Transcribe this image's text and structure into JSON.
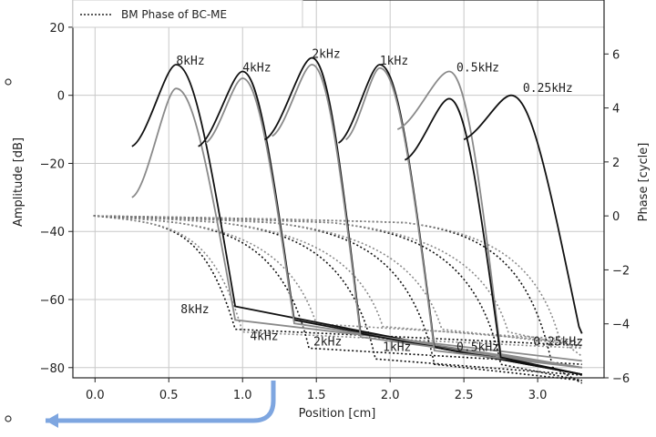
{
  "chart_data": {
    "type": "line",
    "xlabel": "Position [cm]",
    "ylabel_left": "Amplitude [dB]",
    "ylabel_right": "Phase [cycle]",
    "xlim": [
      -0.15,
      3.45
    ],
    "ylim_left": [
      -83,
      28
    ],
    "ylim_right": [
      -6,
      8.0
    ],
    "x_ticks": [
      "0.0",
      "0.5",
      "1.0",
      "1.5",
      "2.0",
      "2.5",
      "3.0"
    ],
    "y_left_ticks": [
      "20",
      "0",
      "−20",
      "−40",
      "−60",
      "−80"
    ],
    "y_right_ticks": [
      "6",
      "4",
      "2",
      "0",
      "−2",
      "−4",
      "−6"
    ],
    "grid": true,
    "legend": {
      "placement": "top-left",
      "entries": [
        "BM Phase of BC-ME"
      ]
    },
    "colors": {
      "black": "#111111",
      "gray": "#8a8a8a"
    },
    "frequencies": [
      "8kHz",
      "4kHz",
      "2kHz",
      "1kHz",
      "0.5kHz",
      "0.25kHz"
    ],
    "amplitude_series": [
      {
        "name": "8kHz",
        "color": "black",
        "peak_x": 0.55,
        "peak_y": 9,
        "start": [
          0.25,
          -15
        ],
        "drop_end": [
          0.95,
          -62
        ],
        "tail_end": [
          3.3,
          -82
        ]
      },
      {
        "name": "8kHz",
        "color": "gray",
        "peak_x": 0.55,
        "peak_y": 2,
        "start": [
          0.25,
          -30
        ],
        "drop_end": [
          0.95,
          -66
        ],
        "tail_end": [
          3.3,
          -78
        ]
      },
      {
        "name": "4kHz",
        "color": "black",
        "peak_x": 1.0,
        "peak_y": 7,
        "start": [
          0.7,
          -15
        ],
        "drop_end": [
          1.35,
          -66
        ],
        "tail_end": [
          3.3,
          -82
        ]
      },
      {
        "name": "4kHz",
        "color": "gray",
        "peak_x": 1.0,
        "peak_y": 5,
        "start": [
          0.75,
          -14
        ],
        "drop_end": [
          1.35,
          -67
        ],
        "tail_end": [
          3.3,
          -80
        ]
      },
      {
        "name": "2kHz",
        "color": "black",
        "peak_x": 1.47,
        "peak_y": 11,
        "start": [
          1.15,
          -13
        ],
        "drop_end": [
          1.8,
          -70
        ],
        "tail_end": [
          3.3,
          -82
        ]
      },
      {
        "name": "2kHz",
        "color": "gray",
        "peak_x": 1.47,
        "peak_y": 9,
        "start": [
          1.2,
          -12
        ],
        "drop_end": [
          1.8,
          -71
        ],
        "tail_end": [
          3.3,
          -80
        ]
      },
      {
        "name": "1kHz",
        "color": "black",
        "peak_x": 1.93,
        "peak_y": 9,
        "start": [
          1.65,
          -14
        ],
        "drop_end": [
          2.3,
          -74
        ],
        "tail_end": [
          3.3,
          -82
        ]
      },
      {
        "name": "1kHz",
        "color": "gray",
        "peak_x": 1.93,
        "peak_y": 8,
        "start": [
          1.7,
          -13
        ],
        "drop_end": [
          2.3,
          -75
        ],
        "tail_end": [
          3.3,
          -80
        ]
      },
      {
        "name": "0.5kHz",
        "color": "gray",
        "peak_x": 2.4,
        "peak_y": 7,
        "start": [
          2.05,
          -10
        ],
        "drop_end": [
          2.75,
          -76
        ],
        "tail_end": [
          3.3,
          -80
        ]
      },
      {
        "name": "0.5kHz",
        "color": "black",
        "peak_x": 2.4,
        "peak_y": -1,
        "start": [
          2.1,
          -19
        ],
        "drop_end": [
          2.75,
          -77
        ],
        "tail_end": [
          3.3,
          -82
        ]
      },
      {
        "name": "0.25kHz",
        "color": "black",
        "peak_x": 2.82,
        "peak_y": 0,
        "start": [
          2.5,
          -13
        ],
        "drop_end": [
          3.28,
          -68
        ],
        "tail_end": [
          3.3,
          -70
        ]
      }
    ],
    "phase_series": [
      {
        "name": "8kHz",
        "color": "black",
        "knee_x": 0.35,
        "drop_x": 0.95,
        "end_phase": -4.2
      },
      {
        "name": "8kHz",
        "color": "gray",
        "knee_x": 0.35,
        "drop_x": 1.0,
        "end_phase": -4.3
      },
      {
        "name": "4kHz",
        "color": "black",
        "knee_x": 0.55,
        "drop_x": 1.45,
        "end_phase": -4.9
      },
      {
        "name": "4kHz",
        "color": "gray",
        "knee_x": 0.55,
        "drop_x": 1.5,
        "end_phase": -4.0
      },
      {
        "name": "2kHz",
        "color": "black",
        "knee_x": 0.85,
        "drop_x": 1.9,
        "end_phase": -5.3
      },
      {
        "name": "2kHz",
        "color": "gray",
        "knee_x": 0.85,
        "drop_x": 1.95,
        "end_phase": -4.1
      },
      {
        "name": "1kHz",
        "color": "black",
        "knee_x": 1.2,
        "drop_x": 2.3,
        "end_phase": -5.5
      },
      {
        "name": "1kHz",
        "color": "gray",
        "knee_x": 1.2,
        "drop_x": 2.35,
        "end_phase": -4.2
      },
      {
        "name": "0.5kHz",
        "color": "black",
        "knee_x": 1.6,
        "drop_x": 2.75,
        "end_phase": -5.5
      },
      {
        "name": "0.5kHz",
        "color": "gray",
        "knee_x": 1.6,
        "drop_x": 2.8,
        "end_phase": -4.3
      },
      {
        "name": "0.25kHz",
        "color": "black",
        "knee_x": 2.1,
        "drop_x": 3.1,
        "end_phase": -5.6
      },
      {
        "name": "0.25kHz",
        "color": "gray",
        "knee_x": 2.1,
        "drop_x": 3.15,
        "end_phase": -4.6
      }
    ],
    "amp_label_pos": [
      [
        0.55,
        9
      ],
      [
        1.0,
        7
      ],
      [
        1.47,
        11
      ],
      [
        1.93,
        9
      ],
      [
        2.45,
        7
      ],
      [
        2.9,
        1
      ]
    ],
    "phase_label_pos": [
      [
        0.58,
        -3.6
      ],
      [
        1.05,
        -4.6
      ],
      [
        1.48,
        -4.8
      ],
      [
        1.95,
        -5.0
      ],
      [
        2.45,
        -5.0
      ],
      [
        2.97,
        -4.8
      ]
    ]
  }
}
